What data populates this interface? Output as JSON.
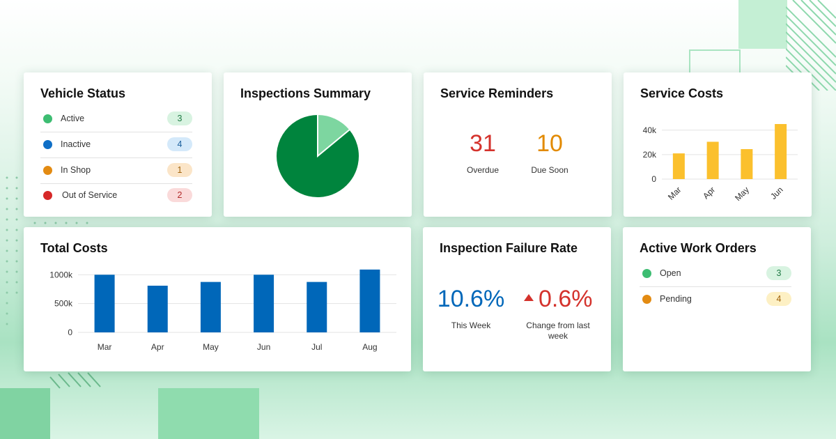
{
  "colors": {
    "green": "#00843d",
    "green_light": "#7dd6a0",
    "blue": "#0067b9",
    "orange": "#e28a00",
    "red": "#d4322c",
    "yellow": "#fbc02d"
  },
  "vehicle_status": {
    "title": "Vehicle Status",
    "items": [
      {
        "label": "Active",
        "count": "3",
        "dot": "#3dbd72",
        "badge_bg": "#d8f3e1"
      },
      {
        "label": "Inactive",
        "count": "4",
        "dot": "#0f6fc6",
        "badge_bg": "#d4e9fa"
      },
      {
        "label": "In Shop",
        "count": "1",
        "dot": "#e38b12",
        "badge_bg": "#fbe5c8"
      },
      {
        "label": "Out of Service",
        "count": "2",
        "dot": "#d62828",
        "badge_bg": "#fadada"
      }
    ]
  },
  "inspections_summary": {
    "title": "Inspections Summary",
    "chart_data": {
      "type": "pie",
      "values": [
        86,
        14
      ],
      "colors": [
        "#00843d",
        "#7dd6a0"
      ]
    }
  },
  "service_reminders": {
    "title": "Service Reminders",
    "overdue_value": "31",
    "overdue_label": "Overdue",
    "due_soon_value": "10",
    "due_soon_label": "Due Soon"
  },
  "service_costs": {
    "title": "Service Costs",
    "chart_data": {
      "type": "bar",
      "categories": [
        "Mar",
        "Apr",
        "May",
        "Jun"
      ],
      "values": [
        21000,
        30500,
        24500,
        45000
      ],
      "ylim": [
        0,
        45000
      ],
      "yticks": [
        0,
        20000,
        40000
      ],
      "ytick_labels": [
        "0",
        "20k",
        "40k"
      ],
      "color": "#fbc02d"
    }
  },
  "total_costs": {
    "title": "Total Costs",
    "chart_data": {
      "type": "bar",
      "categories": [
        "Mar",
        "Apr",
        "May",
        "Jun",
        "Jul",
        "Aug"
      ],
      "values": [
        1000000,
        810000,
        875000,
        1000000,
        875000,
        1090000
      ],
      "ylim": [
        0,
        1100000
      ],
      "yticks": [
        0,
        500000,
        1000000
      ],
      "ytick_labels": [
        "0",
        "500k",
        "1000k"
      ],
      "color": "#0067b9"
    }
  },
  "inspection_failure_rate": {
    "title": "Inspection Failure Rate",
    "this_week_value": "10.6%",
    "this_week_label": "This Week",
    "change_value": "0.6%",
    "change_label": "Change from last week"
  },
  "active_work_orders": {
    "title": "Active Work Orders",
    "items": [
      {
        "label": "Open",
        "count": "3",
        "dot": "#3dbd72",
        "badge_bg": "#d8f3e1"
      },
      {
        "label": "Pending",
        "count": "4",
        "dot": "#e38b12",
        "badge_bg": "#fdf0c4"
      }
    ]
  }
}
